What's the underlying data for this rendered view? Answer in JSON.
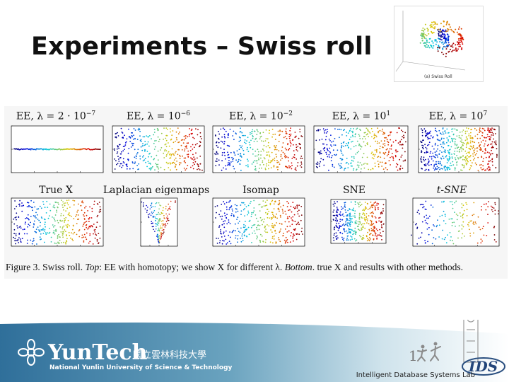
{
  "slide": {
    "title": "Experiments – Swiss roll"
  },
  "thumbnail": {
    "label": "(a) Swiss Roll"
  },
  "figure": {
    "panels_top": [
      {
        "prefix": "EE, λ = 2 · 10",
        "exp": "−7"
      },
      {
        "prefix": "EE, λ = 10",
        "exp": "−6"
      },
      {
        "prefix": "EE, λ = 10",
        "exp": "−2"
      },
      {
        "prefix": "EE, λ = 10",
        "exp": "1"
      },
      {
        "prefix": "EE, λ = 10",
        "exp": "7"
      }
    ],
    "panels_bottom": [
      {
        "label": "True X"
      },
      {
        "label": "Laplacian eigenmaps"
      },
      {
        "label": "Isomap"
      },
      {
        "label": "SNE"
      },
      {
        "label": "t-SNE"
      }
    ],
    "caption": {
      "fig": "Figure 3.",
      "lead": " Swiss roll.  ",
      "top": "Top",
      "top_text": ": EE with homotopy; we show X for different λ.  ",
      "bottom": "Bottom",
      "bottom_text": ".  true X and results with other methods."
    }
  },
  "footer": {
    "brand": "YunTech",
    "brand_cjk": "國立雲林科技大學",
    "university": "National Yunlin University of Science & Technology",
    "page_number": "1",
    "lab": "Intelligent Database Systems Lab",
    "lab_logo": "IDS"
  }
}
